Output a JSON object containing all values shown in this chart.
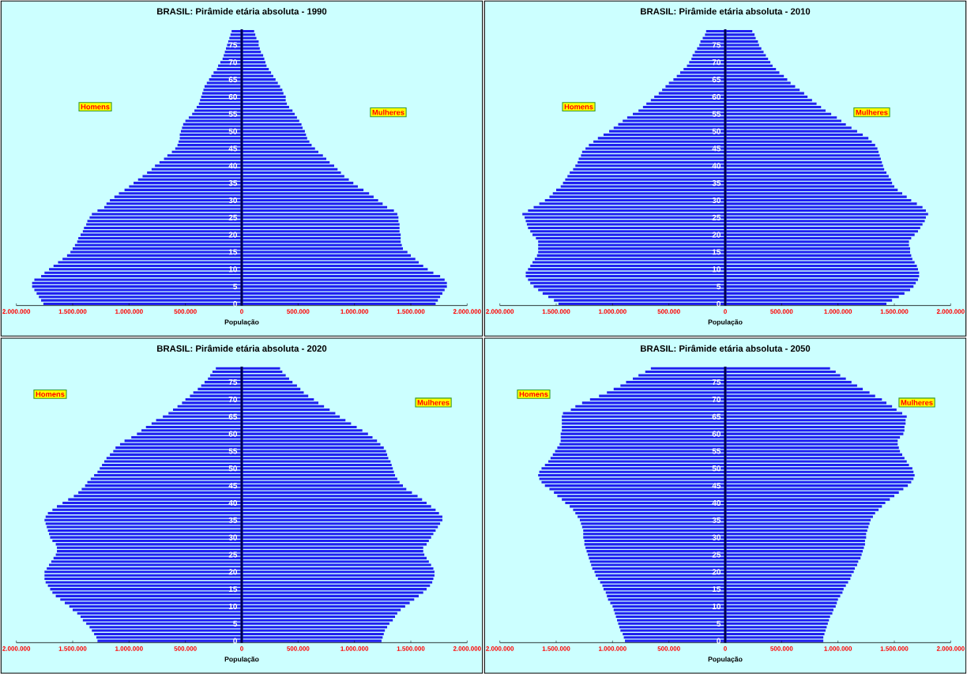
{
  "chart_data": [
    {
      "type": "bar",
      "orientation": "horizontal",
      "title": "BRASIL: Pirâmide etária absoluta - 1990",
      "xlabel": "População",
      "legend": "left",
      "categories": [
        null,
        null,
        null,
        null,
        "75",
        null,
        null,
        null,
        null,
        "70",
        null,
        null,
        null,
        null,
        "65",
        null,
        null,
        null,
        null,
        "60",
        null,
        null,
        null,
        null,
        "55",
        null,
        null,
        null,
        null,
        "50",
        null,
        null,
        null,
        null,
        "45",
        null,
        null,
        null,
        null,
        "40",
        null,
        null,
        null,
        null,
        "35",
        null,
        null,
        null,
        null,
        "30",
        null,
        null,
        null,
        null,
        "25",
        null,
        null,
        null,
        null,
        "20",
        null,
        null,
        null,
        null,
        "15",
        null,
        null,
        null,
        null,
        "10",
        null,
        null,
        null,
        null,
        "5",
        null,
        null,
        null,
        null,
        "0"
      ],
      "series": [
        {
          "name": "Homens",
          "color": "#2020f0",
          "values": [
            90000,
            100000,
            110000,
            120000,
            130000,
            140000,
            150000,
            160000,
            170000,
            190000,
            210000,
            220000,
            250000,
            270000,
            290000,
            310000,
            330000,
            340000,
            350000,
            360000,
            370000,
            380000,
            400000,
            420000,
            440000,
            470000,
            500000,
            520000,
            530000,
            540000,
            550000,
            550000,
            560000,
            570000,
            590000,
            620000,
            660000,
            690000,
            730000,
            770000,
            800000,
            840000,
            880000,
            920000,
            960000,
            1000000,
            1040000,
            1090000,
            1130000,
            1170000,
            1200000,
            1220000,
            1280000,
            1330000,
            1350000,
            1370000,
            1380000,
            1400000,
            1410000,
            1430000,
            1450000,
            1460000,
            1480000,
            1500000,
            1520000,
            1550000,
            1590000,
            1630000,
            1670000,
            1710000,
            1750000,
            1780000,
            1840000,
            1860000,
            1860000,
            1840000,
            1820000,
            1800000,
            1780000,
            1760000
          ]
        }
      ],
      "xlim": [
        2000000,
        0
      ],
      "xticks": [
        {
          "value": 2000000,
          "label": "2.000.000"
        },
        {
          "value": 1500000,
          "label": "1.500.000"
        },
        {
          "value": 1000000,
          "label": "1.000.000"
        },
        {
          "value": 500000,
          "label": "500.000"
        }
      ]
    },
    {
      "type": "bar",
      "orientation": "horizontal",
      "legend": "right",
      "tick_labels": "x",
      "categories": [
        null,
        null,
        null,
        null,
        "75",
        null,
        null,
        null,
        null,
        "70",
        null,
        null,
        null,
        null,
        "65",
        null,
        null,
        null,
        null,
        "60",
        null,
        null,
        null,
        null,
        "55",
        null,
        null,
        null,
        null,
        "50",
        null,
        null,
        null,
        null,
        "45",
        null,
        null,
        null,
        null,
        "40",
        null,
        null,
        null,
        null,
        "35",
        null,
        null,
        null,
        null,
        "30",
        null,
        null,
        null,
        null,
        "25",
        null,
        null,
        null,
        null,
        "20",
        null,
        null,
        null,
        null,
        "15",
        null,
        null,
        null,
        null,
        "10",
        null,
        null,
        null,
        null,
        "5",
        null,
        null,
        null,
        null,
        "0"
      ],
      "series": [
        {
          "name": "Mulheres",
          "color": "#2020f0",
          "values": [
            110000,
            120000,
            130000,
            150000,
            150000,
            160000,
            170000,
            190000,
            200000,
            210000,
            220000,
            240000,
            260000,
            280000,
            300000,
            320000,
            340000,
            360000,
            370000,
            390000,
            390000,
            400000,
            420000,
            450000,
            470000,
            490000,
            510000,
            530000,
            540000,
            560000,
            570000,
            580000,
            600000,
            620000,
            650000,
            680000,
            720000,
            750000,
            780000,
            820000,
            850000,
            880000,
            910000,
            950000,
            990000,
            1030000,
            1080000,
            1130000,
            1170000,
            1210000,
            1250000,
            1290000,
            1350000,
            1380000,
            1390000,
            1390000,
            1400000,
            1400000,
            1400000,
            1410000,
            1410000,
            1410000,
            1420000,
            1430000,
            1470000,
            1500000,
            1540000,
            1570000,
            1610000,
            1650000,
            1700000,
            1760000,
            1800000,
            1820000,
            1820000,
            1800000,
            1780000,
            1760000,
            1740000,
            1720000
          ]
        }
      ],
      "xlim": [
        0,
        2000000
      ],
      "xticks": [
        0,
        {
          "value": 500000,
          "label": "500.000"
        },
        {
          "value": 1000000,
          "label": "1.000.000"
        },
        {
          "value": 1500000,
          "label": "1.500.000"
        },
        {
          "value": 2000000,
          "label": "2.000.000"
        }
      ]
    },
    {
      "type": "bar",
      "orientation": "horizontal",
      "title": "BRASIL: Pirâmide etária absoluta - 2010",
      "xlabel": "População",
      "legend": "left",
      "categories": [
        null,
        null,
        null,
        null,
        "75",
        null,
        null,
        null,
        null,
        "70",
        null,
        null,
        null,
        null,
        "65",
        null,
        null,
        null,
        null,
        "60",
        null,
        null,
        null,
        null,
        "55",
        null,
        null,
        null,
        null,
        "50",
        null,
        null,
        null,
        null,
        "45",
        null,
        null,
        null,
        null,
        "40",
        null,
        null,
        null,
        null,
        "35",
        null,
        null,
        null,
        null,
        "30",
        null,
        null,
        null,
        null,
        "25",
        null,
        null,
        null,
        null,
        "20",
        null,
        null,
        null,
        null,
        "15",
        null,
        null,
        null,
        null,
        "10",
        null,
        null,
        null,
        null,
        "5",
        null,
        null,
        null,
        null,
        "0"
      ],
      "series": [
        {
          "name": "Homens",
          "color": "#2020f0",
          "values": [
            170000,
            180000,
            200000,
            220000,
            230000,
            250000,
            270000,
            290000,
            300000,
            320000,
            340000,
            370000,
            400000,
            430000,
            460000,
            500000,
            530000,
            560000,
            590000,
            630000,
            660000,
            700000,
            730000,
            770000,
            820000,
            870000,
            910000,
            950000,
            990000,
            1030000,
            1080000,
            1130000,
            1170000,
            1210000,
            1240000,
            1270000,
            1280000,
            1300000,
            1310000,
            1330000,
            1350000,
            1380000,
            1400000,
            1420000,
            1440000,
            1460000,
            1500000,
            1530000,
            1560000,
            1600000,
            1650000,
            1700000,
            1750000,
            1800000,
            1780000,
            1770000,
            1760000,
            1750000,
            1730000,
            1710000,
            1680000,
            1660000,
            1660000,
            1660000,
            1660000,
            1670000,
            1690000,
            1710000,
            1730000,
            1750000,
            1770000,
            1770000,
            1750000,
            1730000,
            1700000,
            1660000,
            1620000,
            1570000,
            1520000,
            1480000
          ]
        }
      ],
      "xlim": [
        2000000,
        0
      ],
      "xticks": [
        {
          "value": 2000000,
          "label": "2.000.000"
        },
        {
          "value": 1500000,
          "label": "1.500.000"
        },
        {
          "value": 1000000,
          "label": "1.000.000"
        },
        {
          "value": 500000,
          "label": "500.000"
        }
      ]
    },
    {
      "type": "bar",
      "orientation": "horizontal",
      "legend": "right",
      "tick_labels": "x",
      "categories": [
        null,
        null,
        null,
        null,
        "75",
        null,
        null,
        null,
        null,
        "70",
        null,
        null,
        null,
        null,
        "65",
        null,
        null,
        null,
        null,
        "60",
        null,
        null,
        null,
        null,
        "55",
        null,
        null,
        null,
        null,
        "50",
        null,
        null,
        null,
        null,
        "45",
        null,
        null,
        null,
        null,
        "40",
        null,
        null,
        null,
        null,
        "35",
        null,
        null,
        null,
        null,
        "30",
        null,
        null,
        null,
        null,
        "25",
        null,
        null,
        null,
        null,
        "20",
        null,
        null,
        null,
        null,
        "15",
        null,
        null,
        null,
        null,
        "10",
        null,
        null,
        null,
        null,
        "5",
        null,
        null,
        null,
        null,
        "0"
      ],
      "series": [
        {
          "name": "Mulheres",
          "color": "#2020f0",
          "values": [
            240000,
            260000,
            270000,
            290000,
            300000,
            320000,
            340000,
            360000,
            380000,
            400000,
            420000,
            450000,
            480000,
            520000,
            550000,
            580000,
            620000,
            660000,
            700000,
            730000,
            770000,
            810000,
            850000,
            890000,
            940000,
            990000,
            1030000,
            1070000,
            1120000,
            1170000,
            1220000,
            1270000,
            1300000,
            1330000,
            1350000,
            1360000,
            1370000,
            1380000,
            1390000,
            1400000,
            1410000,
            1430000,
            1450000,
            1470000,
            1480000,
            1500000,
            1530000,
            1570000,
            1610000,
            1650000,
            1700000,
            1750000,
            1780000,
            1800000,
            1780000,
            1770000,
            1750000,
            1730000,
            1710000,
            1680000,
            1650000,
            1630000,
            1630000,
            1640000,
            1640000,
            1650000,
            1660000,
            1680000,
            1700000,
            1710000,
            1720000,
            1720000,
            1710000,
            1690000,
            1670000,
            1640000,
            1590000,
            1540000,
            1480000,
            1430000
          ]
        }
      ],
      "xlim": [
        0,
        2000000
      ],
      "xticks": [
        0,
        {
          "value": 500000,
          "label": "500.000"
        },
        {
          "value": 1000000,
          "label": "1.000.000"
        },
        {
          "value": 1500000,
          "label": "1.500.000"
        },
        {
          "value": 2000000,
          "label": "2.000.000"
        }
      ]
    },
    {
      "type": "bar",
      "orientation": "horizontal",
      "title": "BRASIL: Pirâmide etária absoluta - 2020",
      "xlabel": "População",
      "legend": "top left",
      "categories": [
        null,
        null,
        null,
        null,
        "75",
        null,
        null,
        null,
        null,
        "70",
        null,
        null,
        null,
        null,
        "65",
        null,
        null,
        null,
        null,
        "60",
        null,
        null,
        null,
        null,
        "55",
        null,
        null,
        null,
        null,
        "50",
        null,
        null,
        null,
        null,
        "45",
        null,
        null,
        null,
        null,
        "40",
        null,
        null,
        null,
        null,
        "35",
        null,
        null,
        null,
        null,
        "30",
        null,
        null,
        null,
        null,
        "25",
        null,
        null,
        null,
        null,
        "20",
        null,
        null,
        null,
        null,
        "15",
        null,
        null,
        null,
        null,
        "10",
        null,
        null,
        null,
        null,
        "5",
        null,
        null,
        null,
        null,
        "0"
      ],
      "series": [
        {
          "name": "Homens",
          "color": "#2020f0",
          "values": [
            230000,
            260000,
            280000,
            300000,
            330000,
            360000,
            390000,
            430000,
            460000,
            500000,
            530000,
            570000,
            610000,
            650000,
            700000,
            760000,
            800000,
            850000,
            890000,
            930000,
            980000,
            1040000,
            1080000,
            1120000,
            1140000,
            1170000,
            1200000,
            1220000,
            1240000,
            1260000,
            1280000,
            1310000,
            1340000,
            1370000,
            1390000,
            1420000,
            1450000,
            1490000,
            1540000,
            1590000,
            1640000,
            1680000,
            1720000,
            1740000,
            1750000,
            1740000,
            1730000,
            1720000,
            1710000,
            1700000,
            1680000,
            1650000,
            1640000,
            1640000,
            1650000,
            1670000,
            1690000,
            1710000,
            1730000,
            1750000,
            1750000,
            1750000,
            1740000,
            1720000,
            1700000,
            1680000,
            1650000,
            1610000,
            1570000,
            1530000,
            1500000,
            1460000,
            1430000,
            1410000,
            1380000,
            1350000,
            1330000,
            1310000,
            1290000,
            1280000
          ]
        }
      ],
      "xlim": [
        2000000,
        0
      ],
      "xticks": [
        {
          "value": 2000000,
          "label": "2.000.000"
        },
        {
          "value": 1500000,
          "label": "1.500.000"
        },
        {
          "value": 1000000,
          "label": "1.000.000"
        },
        {
          "value": 500000,
          "label": "500.000"
        }
      ]
    },
    {
      "type": "bar",
      "orientation": "horizontal",
      "legend": "top right",
      "tick_labels": "x",
      "categories": [
        null,
        null,
        null,
        null,
        "75",
        null,
        null,
        null,
        null,
        "70",
        null,
        null,
        null,
        null,
        "65",
        null,
        null,
        null,
        null,
        "60",
        null,
        null,
        null,
        null,
        "55",
        null,
        null,
        null,
        null,
        "50",
        null,
        null,
        null,
        null,
        "45",
        null,
        null,
        null,
        null,
        "40",
        null,
        null,
        null,
        null,
        "35",
        null,
        null,
        null,
        null,
        "30",
        null,
        null,
        null,
        null,
        "25",
        null,
        null,
        null,
        null,
        "20",
        null,
        null,
        null,
        null,
        "15",
        null,
        null,
        null,
        null,
        "10",
        null,
        null,
        null,
        null,
        "5",
        null,
        null,
        null,
        null,
        "0"
      ],
      "series": [
        {
          "name": "Mulheres",
          "color": "#2020f0",
          "values": [
            340000,
            360000,
            390000,
            420000,
            450000,
            490000,
            520000,
            550000,
            590000,
            640000,
            680000,
            730000,
            780000,
            830000,
            870000,
            920000,
            970000,
            1020000,
            1070000,
            1120000,
            1160000,
            1200000,
            1230000,
            1260000,
            1280000,
            1290000,
            1300000,
            1320000,
            1330000,
            1340000,
            1350000,
            1360000,
            1380000,
            1400000,
            1430000,
            1460000,
            1510000,
            1560000,
            1600000,
            1640000,
            1680000,
            1720000,
            1750000,
            1780000,
            1780000,
            1760000,
            1740000,
            1720000,
            1700000,
            1680000,
            1660000,
            1640000,
            1610000,
            1610000,
            1620000,
            1640000,
            1660000,
            1680000,
            1700000,
            1710000,
            1710000,
            1700000,
            1690000,
            1670000,
            1640000,
            1610000,
            1570000,
            1530000,
            1490000,
            1450000,
            1410000,
            1380000,
            1360000,
            1340000,
            1310000,
            1290000,
            1270000,
            1260000,
            1250000,
            1240000
          ]
        }
      ],
      "xlim": [
        0,
        2000000
      ],
      "xticks": [
        0,
        {
          "value": 500000,
          "label": "500.000"
        },
        {
          "value": 1000000,
          "label": "1.000.000"
        },
        {
          "value": 1500000,
          "label": "1.500.000"
        },
        {
          "value": 2000000,
          "label": "2.000.000"
        }
      ]
    },
    {
      "type": "bar",
      "orientation": "horizontal",
      "title": "BRASIL: Pirâmide etária absoluta - 2050",
      "xlabel": "População",
      "legend": "top left",
      "categories": [
        null,
        null,
        null,
        null,
        "75",
        null,
        null,
        null,
        null,
        "70",
        null,
        null,
        null,
        null,
        "65",
        null,
        null,
        null,
        null,
        "60",
        null,
        null,
        null,
        null,
        "55",
        null,
        null,
        null,
        null,
        "50",
        null,
        null,
        null,
        null,
        "45",
        null,
        null,
        null,
        null,
        "40",
        null,
        null,
        null,
        null,
        "35",
        null,
        null,
        null,
        null,
        "30",
        null,
        null,
        null,
        null,
        "25",
        null,
        null,
        null,
        null,
        "20",
        null,
        null,
        null,
        null,
        "15",
        null,
        null,
        null,
        null,
        "10",
        null,
        null,
        null,
        null,
        "5",
        null,
        null,
        null,
        null,
        "0"
      ],
      "series": [
        {
          "name": "Homens",
          "color": "#2020f0",
          "values": [
            660000,
            710000,
            770000,
            820000,
            880000,
            930000,
            990000,
            1050000,
            1120000,
            1200000,
            1270000,
            1330000,
            1370000,
            1440000,
            1450000,
            1450000,
            1450000,
            1450000,
            1450000,
            1460000,
            1460000,
            1460000,
            1470000,
            1490000,
            1510000,
            1530000,
            1550000,
            1570000,
            1600000,
            1630000,
            1650000,
            1660000,
            1650000,
            1630000,
            1600000,
            1560000,
            1520000,
            1490000,
            1450000,
            1420000,
            1380000,
            1350000,
            1330000,
            1310000,
            1290000,
            1280000,
            1270000,
            1260000,
            1260000,
            1260000,
            1250000,
            1250000,
            1240000,
            1230000,
            1220000,
            1210000,
            1200000,
            1190000,
            1180000,
            1160000,
            1150000,
            1130000,
            1110000,
            1090000,
            1080000,
            1060000,
            1050000,
            1040000,
            1020000,
            1000000,
            990000,
            980000,
            970000,
            960000,
            950000,
            940000,
            930000,
            910000,
            900000,
            890000
          ]
        }
      ],
      "xlim": [
        2000000,
        0
      ],
      "xticks": [
        {
          "value": 2000000,
          "label": "2.000.000"
        },
        {
          "value": 1500000,
          "label": "1.500.000"
        },
        {
          "value": 1000000,
          "label": "1.000.000"
        },
        {
          "value": 500000,
          "label": "500.000"
        }
      ]
    },
    {
      "type": "bar",
      "orientation": "horizontal",
      "legend": "top right",
      "tick_labels": "x",
      "categories": [
        null,
        null,
        null,
        null,
        "75",
        null,
        null,
        null,
        null,
        "70",
        null,
        null,
        null,
        null,
        "65",
        null,
        null,
        null,
        null,
        "60",
        null,
        null,
        null,
        null,
        "55",
        null,
        null,
        null,
        null,
        "50",
        null,
        null,
        null,
        null,
        "45",
        null,
        null,
        null,
        null,
        "40",
        null,
        null,
        null,
        null,
        "35",
        null,
        null,
        null,
        null,
        "30",
        null,
        null,
        null,
        null,
        "25",
        null,
        null,
        null,
        null,
        "20",
        null,
        null,
        null,
        null,
        "15",
        null,
        null,
        null,
        null,
        "10",
        null,
        null,
        null,
        null,
        "5",
        null,
        null,
        null,
        null,
        "0"
      ],
      "series": [
        {
          "name": "Mulheres",
          "color": "#2020f0",
          "values": [
            930000,
            980000,
            1020000,
            1070000,
            1120000,
            1170000,
            1220000,
            1280000,
            1330000,
            1390000,
            1430000,
            1480000,
            1520000,
            1570000,
            1610000,
            1600000,
            1600000,
            1590000,
            1590000,
            1580000,
            1550000,
            1530000,
            1530000,
            1540000,
            1550000,
            1570000,
            1590000,
            1610000,
            1630000,
            1660000,
            1670000,
            1680000,
            1670000,
            1650000,
            1620000,
            1580000,
            1540000,
            1500000,
            1460000,
            1420000,
            1390000,
            1360000,
            1330000,
            1310000,
            1290000,
            1280000,
            1270000,
            1260000,
            1250000,
            1250000,
            1240000,
            1240000,
            1230000,
            1220000,
            1210000,
            1200000,
            1180000,
            1170000,
            1150000,
            1140000,
            1120000,
            1110000,
            1090000,
            1070000,
            1050000,
            1040000,
            1020000,
            1000000,
            990000,
            980000,
            960000,
            950000,
            930000,
            920000,
            910000,
            900000,
            890000,
            880000,
            870000,
            870000
          ]
        }
      ],
      "xlim": [
        0,
        2000000
      ],
      "xticks": [
        0,
        {
          "value": 500000,
          "label": "500.000"
        },
        {
          "value": 1000000,
          "label": "1.000.000"
        },
        {
          "value": 1500000,
          "label": "1.500.000"
        },
        {
          "value": 2000000,
          "label": "2.000.000"
        }
      ]
    }
  ]
}
